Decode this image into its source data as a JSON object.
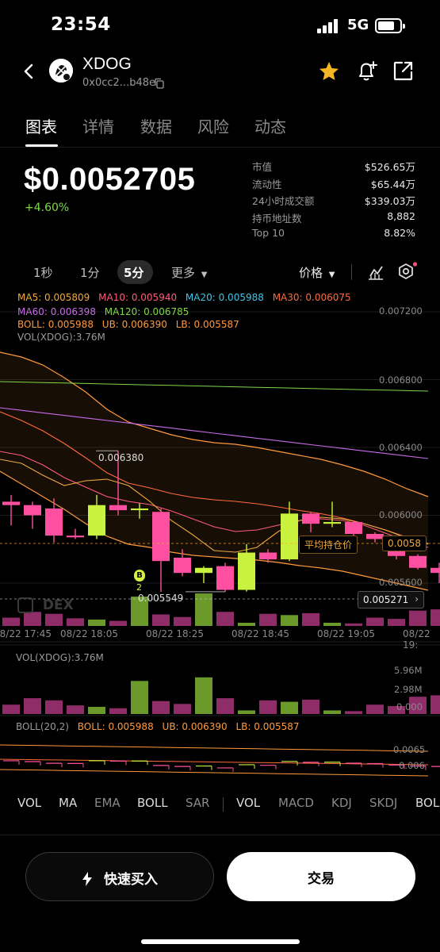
{
  "status_bar": {
    "time": "23:54",
    "network": "5G"
  },
  "header": {
    "token_name": "XDOG",
    "token_address": "0x0cc2...b48e",
    "icons": [
      "back-icon",
      "token-logo",
      "copy-icon",
      "star-icon",
      "price-alert-icon",
      "share-icon"
    ],
    "star_color": "#f5b623"
  },
  "tabs": [
    "图表",
    "详情",
    "数据",
    "风险",
    "动态"
  ],
  "active_tab": "图表",
  "price": {
    "value": "$0.0052705",
    "change": "+4.60%",
    "change_color": "#7fd84a"
  },
  "stats": [
    {
      "label": "市值",
      "value": "$526.65万"
    },
    {
      "label": "流动性",
      "value": "$65.44万"
    },
    {
      "label": "24小时成交额",
      "value": "$339.03万"
    },
    {
      "label": "持币地址数",
      "value": "8,882"
    },
    {
      "label": "Top 10",
      "value": "8.82%"
    }
  ],
  "toolbar": {
    "intervals": [
      "1秒",
      "1分",
      "5分"
    ],
    "active_interval": "5分",
    "more_label": "更多",
    "price_label": "价格"
  },
  "legend": {
    "ma5": "MA5: 0.005809",
    "ma10": "MA10: 0.005940",
    "ma20": "MA20: 0.005988",
    "ma30": "MA30: 0.006075",
    "ma60": "MA60: 0.006398",
    "ma120": "MA120: 0.006785",
    "boll": "BOLL: 0.005988",
    "ub": "UB: 0.006390",
    "lb": "LB: 0.005587",
    "vol": "VOL(XDOG):3.76M"
  },
  "legend_colors": {
    "ma5": "#f0a93b",
    "ma10": "#ff5c7a",
    "ma20": "#3ec5e8",
    "ma30": "#ff6a3d",
    "ma60": "#c66be8",
    "ma120": "#7fd84a",
    "boll": "#ff9a3c",
    "ub": "#ff9a3c",
    "lb": "#ff9a3c"
  },
  "chart_data": {
    "type": "candlestick",
    "price_axis_ticks": [
      "0.007200",
      "0.006800",
      "0.006400",
      "0.006000",
      "0.005600"
    ],
    "time_labels": [
      "08/22 17:45",
      "08/22 18:05",
      "08/22 18:25",
      "08/22 18:45",
      "08/22 19:05",
      "08/22 19:"
    ],
    "high_marker": "0.006380",
    "low_marker": "0.005549",
    "avg_hold_label": "平均持仓价",
    "avg_hold_value": "0.0058",
    "current_price_tag": "0.005271",
    "buy_marker": "B",
    "buy_marker_count": "2",
    "watermark": "DEX",
    "candles": [
      {
        "o": 0.00608,
        "h": 0.00612,
        "l": 0.00594,
        "c": 0.00606
      },
      {
        "o": 0.00606,
        "h": 0.00608,
        "l": 0.00592,
        "c": 0.006
      },
      {
        "o": 0.00604,
        "h": 0.0061,
        "l": 0.00584,
        "c": 0.00588
      },
      {
        "o": 0.00588,
        "h": 0.00592,
        "l": 0.00586,
        "c": 0.00587
      },
      {
        "o": 0.00588,
        "h": 0.00612,
        "l": 0.00586,
        "c": 0.00606
      },
      {
        "o": 0.00606,
        "h": 0.00638,
        "l": 0.006,
        "c": 0.00603
      },
      {
        "o": 0.00603,
        "h": 0.00607,
        "l": 0.00598,
        "c": 0.00604
      },
      {
        "o": 0.00602,
        "h": 0.00604,
        "l": 0.005549,
        "c": 0.00573
      },
      {
        "o": 0.00575,
        "h": 0.0058,
        "l": 0.00564,
        "c": 0.00566
      },
      {
        "o": 0.00566,
        "h": 0.0057,
        "l": 0.0056,
        "c": 0.00569
      },
      {
        "o": 0.0057,
        "h": 0.00572,
        "l": 0.005549,
        "c": 0.00556
      },
      {
        "o": 0.00556,
        "h": 0.00583,
        "l": 0.00555,
        "c": 0.00578
      },
      {
        "o": 0.00578,
        "h": 0.0058,
        "l": 0.00572,
        "c": 0.00574
      },
      {
        "o": 0.00574,
        "h": 0.00608,
        "l": 0.00573,
        "c": 0.00601
      },
      {
        "o": 0.00601,
        "h": 0.00602,
        "l": 0.0059,
        "c": 0.00595
      },
      {
        "o": 0.00595,
        "h": 0.00608,
        "l": 0.00593,
        "c": 0.00596
      },
      {
        "o": 0.00596,
        "h": 0.00597,
        "l": 0.00587,
        "c": 0.00589
      },
      {
        "o": 0.00589,
        "h": 0.0059,
        "l": 0.00584,
        "c": 0.00586
      },
      {
        "o": 0.00586,
        "h": 0.00587,
        "l": 0.00574,
        "c": 0.00576
      },
      {
        "o": 0.00576,
        "h": 0.00577,
        "l": 0.00568,
        "c": 0.00569
      },
      {
        "o": 0.00569,
        "h": 0.00572,
        "l": 0.0056,
        "c": 0.00566
      }
    ]
  },
  "volume_panel": {
    "label": "VOL(XDOG):3.76M",
    "ticks": [
      "5.96M",
      "2.98M",
      "0.000"
    ],
    "volume_unit": "M",
    "volumes": [
      1.3,
      2.2,
      1.9,
      1.2,
      1.0,
      0.8,
      4.6,
      1.8,
      1.4,
      5.1,
      2.2,
      0.5,
      1.9,
      1.7,
      2.0,
      0.5,
      0.4,
      1.3,
      1.1,
      2.4,
      2.6
    ]
  },
  "boll_panel": {
    "label": "BOLL(20,2)",
    "boll": "BOLL: 0.005988",
    "ub": "UB: 0.006390",
    "lb": "LB: 0.005587",
    "ticks": [
      "0.0065",
      "0.006"
    ]
  },
  "indicators_main": [
    "VOL",
    "MA",
    "EMA",
    "BOLL",
    "SAR"
  ],
  "indicators_sub": [
    "VOL",
    "MACD",
    "KDJ",
    "SKDJ",
    "BOL"
  ],
  "active_indicators": [
    "VOL",
    "MA",
    "BOLL"
  ],
  "actions": {
    "quick_buy": "快速买入",
    "trade": "交易"
  },
  "colors": {
    "up": "#c8f23e",
    "down": "#ff4fa0",
    "up_vol": "#6b9a2a",
    "down_vol": "#8e2d68",
    "boll_band": "#ff9a3c"
  }
}
